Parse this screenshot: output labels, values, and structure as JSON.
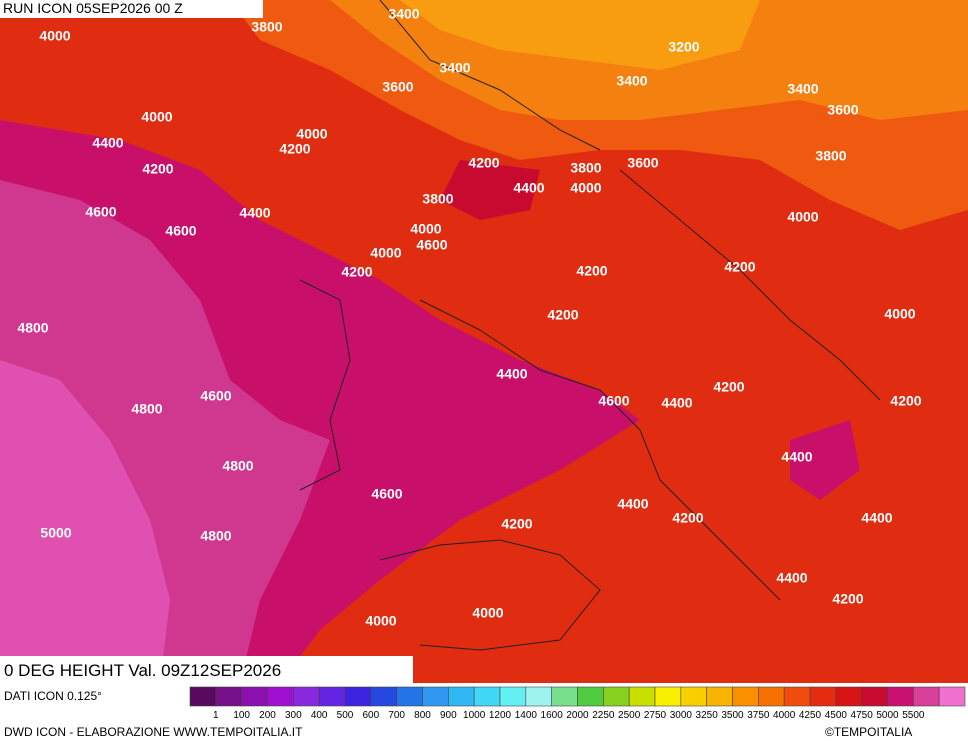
{
  "header": {
    "run": "RUN ICON 05SEP2026 00 Z"
  },
  "map": {
    "title": "0 DEG HEIGHT Val. 09Z12SEP2026",
    "contour_labels": [
      4000,
      3800,
      3400,
      3200,
      3400,
      3600,
      3400,
      3400,
      3600,
      4000,
      4000,
      4400,
      4200,
      3800,
      4200,
      3800,
      3600,
      4200,
      4400,
      4000,
      3800,
      4600,
      4400,
      4000,
      4600,
      4000,
      4600,
      4000,
      4200,
      4200,
      4200,
      4000,
      4800,
      4200,
      4400,
      4200,
      4600,
      4400,
      4200,
      4800,
      4600,
      4400,
      4800,
      4600,
      4400,
      4200,
      4400,
      4200,
      5000,
      4800,
      4400,
      4200,
      4000,
      4000
    ]
  },
  "legend": {
    "source": "DATI ICON 0.125°",
    "labels": [
      1,
      100,
      200,
      300,
      400,
      500,
      600,
      700,
      800,
      900,
      1000,
      1200,
      1400,
      1600,
      2000,
      2250,
      2500,
      2750,
      3000,
      3250,
      3500,
      3750,
      4000,
      4250,
      4500,
      4750,
      5000,
      5500
    ],
    "colors": [
      "#5a0a5e",
      "#76108a",
      "#8c10b0",
      "#a010d0",
      "#8a28e0",
      "#6424e4",
      "#3c24e0",
      "#2448e0",
      "#2474e8",
      "#3098f0",
      "#30b8f4",
      "#40d8f4",
      "#64f0f0",
      "#a0f4f0",
      "#78e08c",
      "#50cc40",
      "#88d020",
      "#c8e000",
      "#f8f000",
      "#f8d000",
      "#f8b400",
      "#f89000",
      "#f87000",
      "#f04c10",
      "#e42c10",
      "#d81414",
      "#c80a30",
      "#c81070",
      "#d8409c",
      "#f070d0"
    ]
  },
  "footer": {
    "credit": "DWD ICON - ELABORAZIONE WWW.TEMPOITALIA.IT",
    "copyright": "©TEMPOITALIA"
  }
}
